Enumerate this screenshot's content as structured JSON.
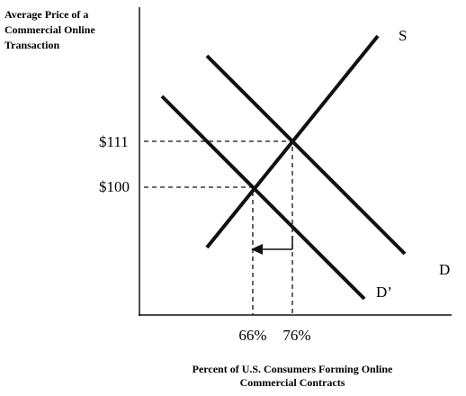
{
  "y_axis_label": [
    "Average Price of a",
    "Commercial Online",
    "Transaction"
  ],
  "x_axis_label": [
    "Percent of U.S. Consumers Forming Online",
    "Commercial Contracts"
  ],
  "price_labels": [
    "$111",
    "$100"
  ],
  "quantity_labels": [
    "66%",
    "76%"
  ],
  "curves": [
    {
      "label": "S"
    },
    {
      "label": "D"
    },
    {
      "label": "D’"
    }
  ]
}
